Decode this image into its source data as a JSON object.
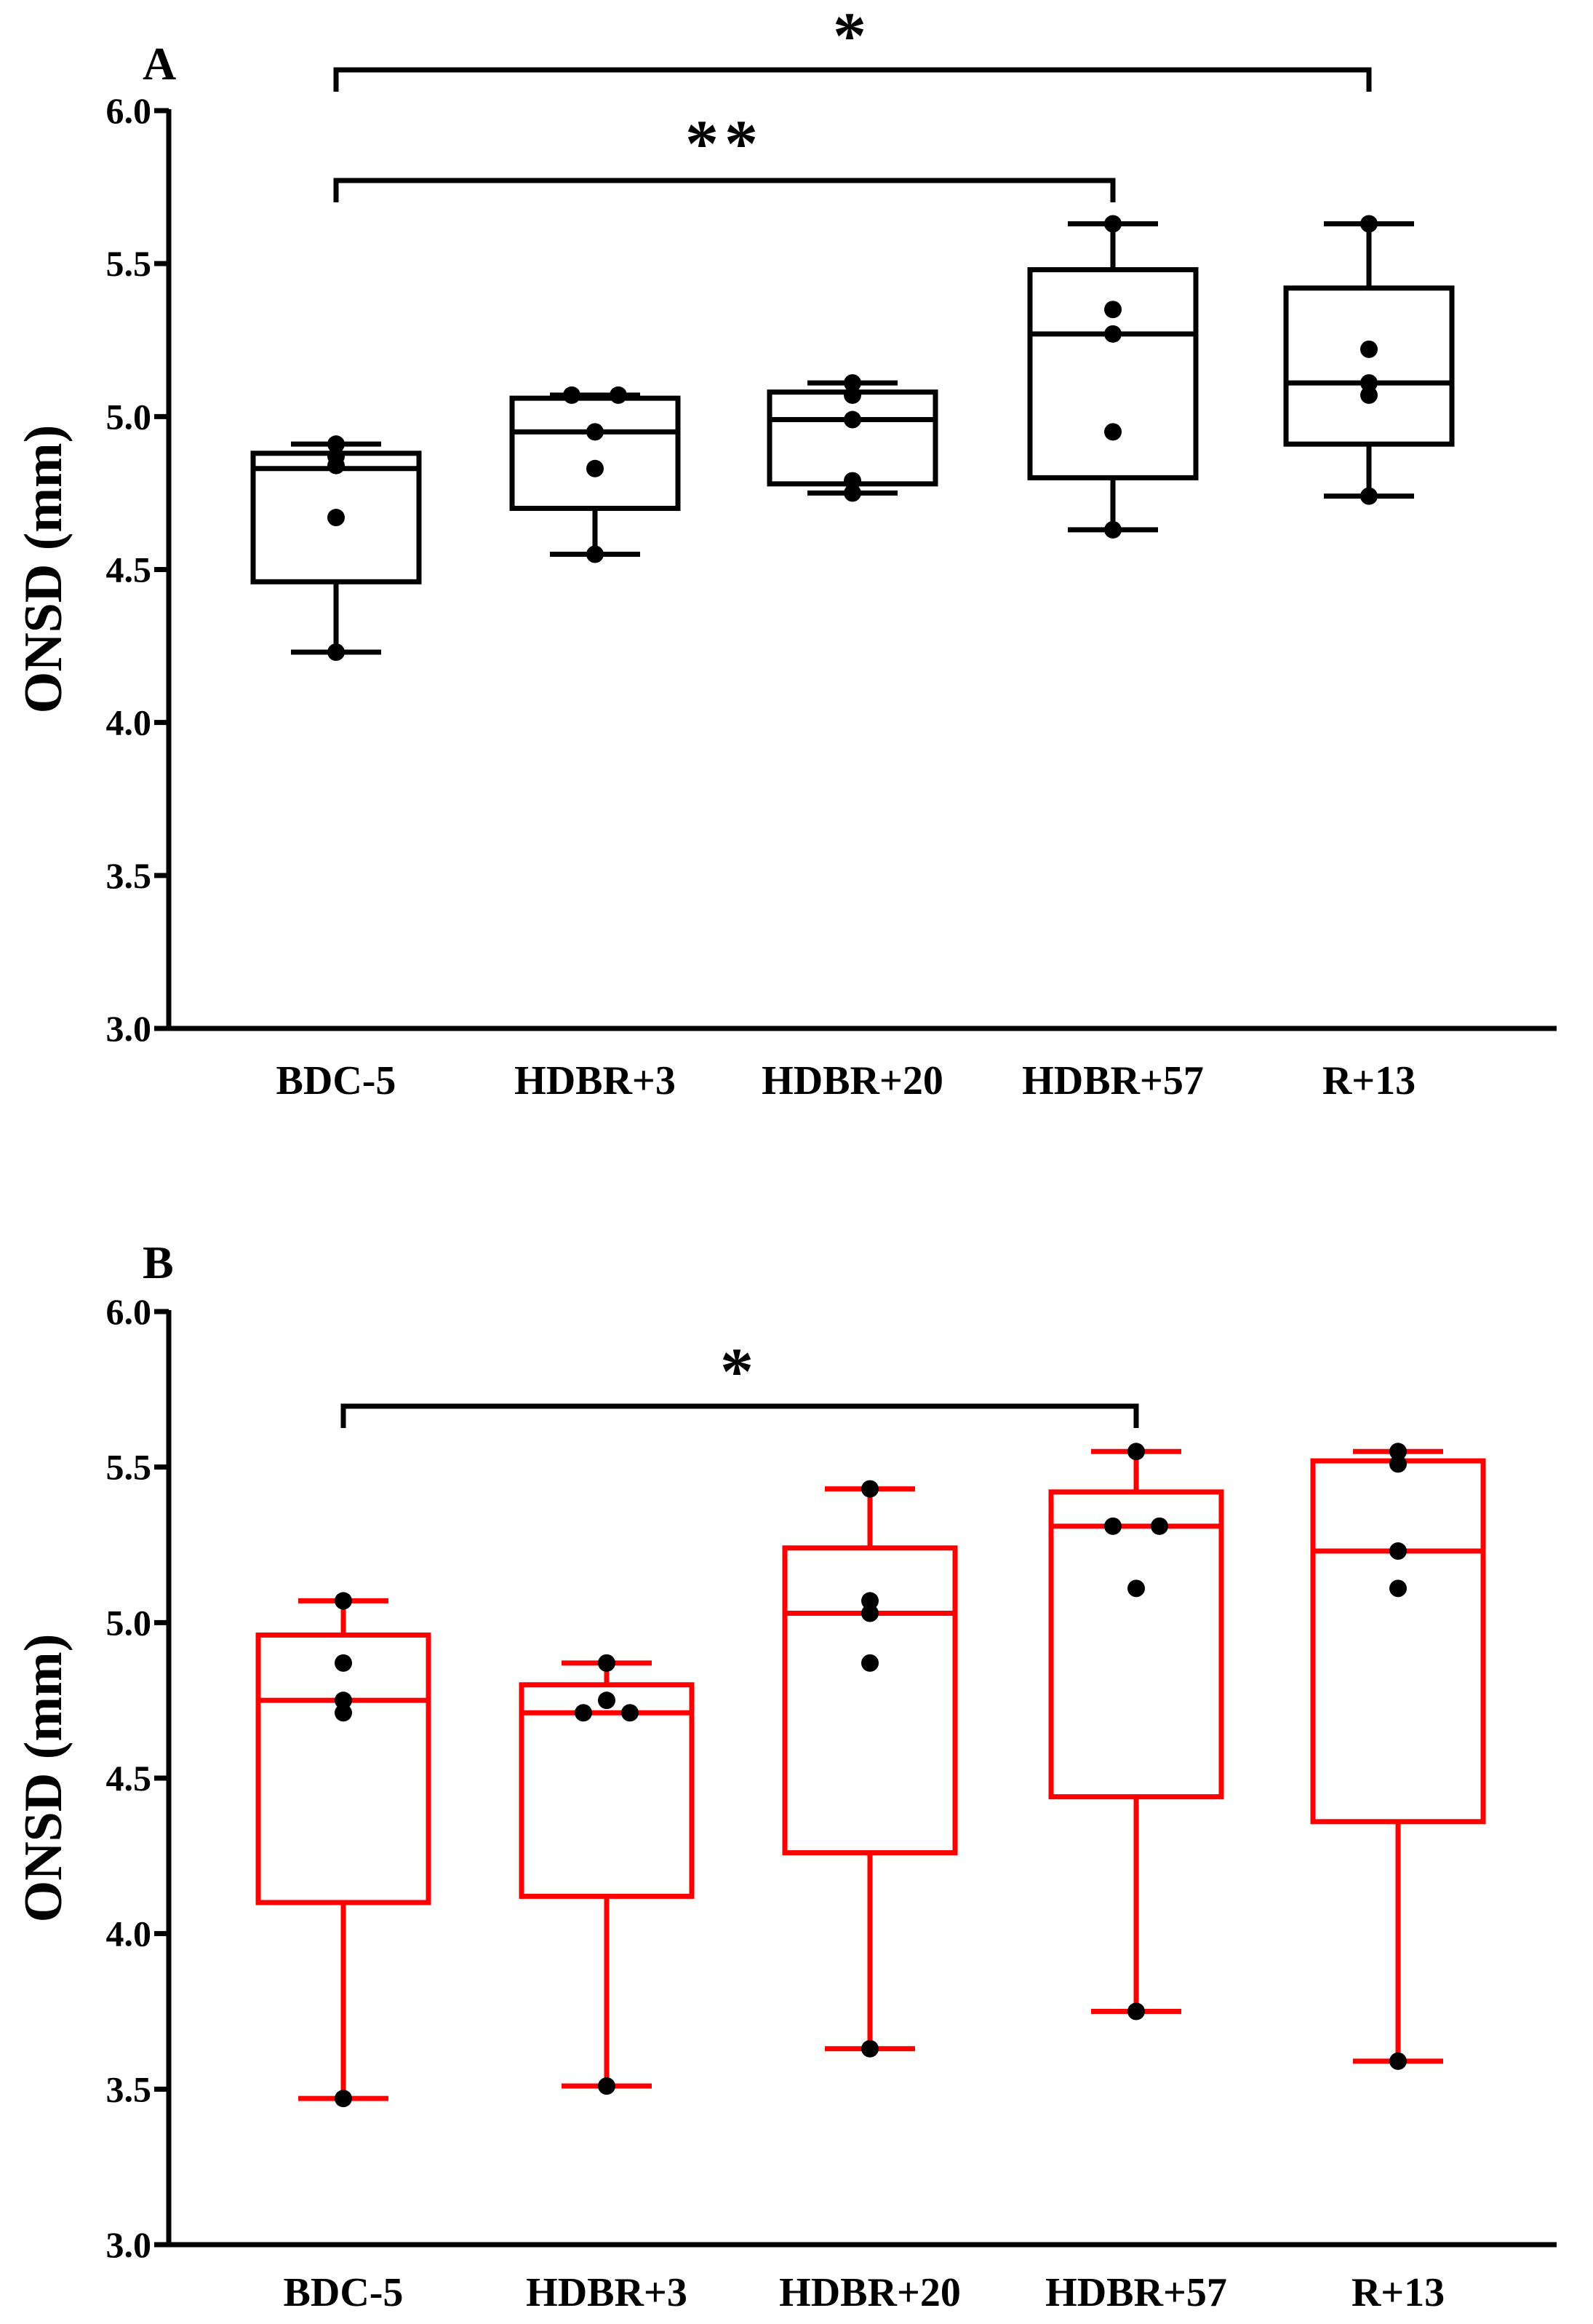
{
  "chart_data": [
    {
      "type": "box",
      "panel": "A",
      "color": "#000000",
      "ylabel": "ONSD (mm)",
      "xlabel": "",
      "ylim": [
        3.0,
        6.0
      ],
      "yticks": [
        "3.0",
        "3.5",
        "4.0",
        "4.5",
        "5.0",
        "5.5",
        "6.0"
      ],
      "categories": [
        "BDC-5",
        "HDBR+3",
        "HDBR+20",
        "HDBR+57",
        "R+13"
      ],
      "boxes": [
        {
          "min": 4.23,
          "q1": 4.46,
          "median": 4.83,
          "q3": 4.88,
          "max": 4.91,
          "points": [
            4.23,
            4.67,
            4.84,
            4.87,
            4.91
          ]
        },
        {
          "min": 4.55,
          "q1": 4.7,
          "median": 4.95,
          "q3": 5.06,
          "max": 5.07,
          "points": [
            4.55,
            4.83,
            4.95,
            5.07,
            5.07
          ]
        },
        {
          "min": 4.75,
          "q1": 4.78,
          "median": 4.99,
          "q3": 5.08,
          "max": 5.11,
          "points": [
            4.75,
            4.79,
            4.99,
            5.07,
            5.11
          ]
        },
        {
          "min": 4.63,
          "q1": 4.8,
          "median": 5.27,
          "q3": 5.48,
          "max": 5.63,
          "points": [
            4.63,
            4.95,
            5.27,
            5.35,
            5.63
          ]
        },
        {
          "min": 4.74,
          "q1": 4.91,
          "median": 5.11,
          "q3": 5.42,
          "max": 5.63,
          "points": [
            4.74,
            5.07,
            5.11,
            5.22,
            5.63
          ]
        }
      ],
      "significance": [
        {
          "from": 0,
          "to": 4,
          "label": "*"
        },
        {
          "from": 0,
          "to": 3,
          "label": "**"
        }
      ]
    },
    {
      "type": "box",
      "panel": "B",
      "color": "#ff0000",
      "ylabel": "ONSD (mm)",
      "xlabel": "",
      "ylim": [
        3.0,
        6.0
      ],
      "yticks": [
        "3.0",
        "3.5",
        "4.0",
        "4.5",
        "5.0",
        "5.5",
        "6.0"
      ],
      "categories": [
        "BDC-5",
        "HDBR+3",
        "HDBR+20",
        "HDBR+57",
        "R+13"
      ],
      "boxes": [
        {
          "min": 3.47,
          "q1": 4.1,
          "median": 4.75,
          "q3": 4.96,
          "max": 5.07,
          "points": [
            3.47,
            4.71,
            4.75,
            4.87,
            5.07
          ]
        },
        {
          "min": 3.51,
          "q1": 4.12,
          "median": 4.71,
          "q3": 4.8,
          "max": 4.87,
          "points": [
            3.51,
            4.71,
            4.71,
            4.75,
            4.87
          ]
        },
        {
          "min": 3.63,
          "q1": 4.26,
          "median": 5.03,
          "q3": 5.24,
          "max": 5.43,
          "points": [
            3.63,
            4.87,
            5.03,
            5.07,
            5.43
          ]
        },
        {
          "min": 3.75,
          "q1": 4.44,
          "median": 5.31,
          "q3": 5.42,
          "max": 5.55,
          "points": [
            3.75,
            5.11,
            5.31,
            5.31,
            5.55
          ]
        },
        {
          "min": 3.59,
          "q1": 4.36,
          "median": 5.23,
          "q3": 5.52,
          "max": 5.55,
          "points": [
            3.59,
            5.11,
            5.23,
            5.51,
            5.55
          ]
        }
      ],
      "significance": [
        {
          "from": 0,
          "to": 3,
          "label": "*"
        }
      ]
    }
  ]
}
